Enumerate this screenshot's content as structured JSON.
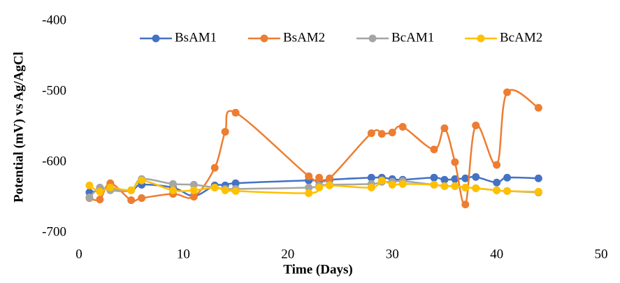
{
  "chart_data": {
    "type": "line",
    "x_label": "Time (Days)",
    "y_label": "Potential (mV) vs Ag/AgCl",
    "x": [
      1,
      2,
      3,
      5,
      6,
      9,
      11,
      13,
      14,
      15,
      22,
      23,
      24,
      28,
      29,
      30,
      31,
      34,
      35,
      36,
      37,
      38,
      40,
      41,
      44
    ],
    "series": [
      {
        "name": "BsAM1",
        "color": "#4472c4",
        "values": [
          -643,
          -640,
          -637,
          -640,
          -632,
          -636,
          -648,
          -633,
          -633,
          -630,
          -626,
          -627,
          -625,
          -622,
          -622,
          -624,
          -625,
          -622,
          -625,
          -624,
          -623,
          -621,
          -629,
          -622,
          -623
        ]
      },
      {
        "name": "BsAM2",
        "color": "#ed7d31",
        "values": [
          -651,
          -653,
          -630,
          -654,
          -651,
          -645,
          -649,
          -608,
          -557,
          -530,
          -620,
          -622,
          -623,
          -559,
          -560,
          -558,
          -550,
          -582,
          -552,
          -600,
          -660,
          -548,
          -604,
          -501,
          -523
        ]
      },
      {
        "name": "BcAM1",
        "color": "#a5a5a5",
        "values": [
          -650,
          -636,
          -640,
          -640,
          -624,
          -631,
          -632,
          -636,
          -638,
          -638,
          -636,
          -633,
          -632,
          -631,
          -628,
          -628,
          -627,
          -632,
          -634,
          -634,
          -636,
          -637,
          -640,
          -641,
          -643
        ]
      },
      {
        "name": "BcAM2",
        "color": "#ffc000",
        "values": [
          -633,
          -642,
          -636,
          -640,
          -626,
          -640,
          -640,
          -636,
          -640,
          -641,
          -644,
          -636,
          -633,
          -636,
          -626,
          -632,
          -631,
          -632,
          -634,
          -634,
          -636,
          -637,
          -640,
          -641,
          -642
        ]
      }
    ],
    "xlim": [
      0,
      50
    ],
    "xticks": [
      0,
      10,
      20,
      30,
      40,
      50
    ],
    "ylim": [
      -700,
      -400
    ],
    "yticks": [
      -400,
      -500,
      -600,
      -700
    ],
    "y_inverted": true,
    "smooth": true,
    "grid": false,
    "legend": "top"
  }
}
